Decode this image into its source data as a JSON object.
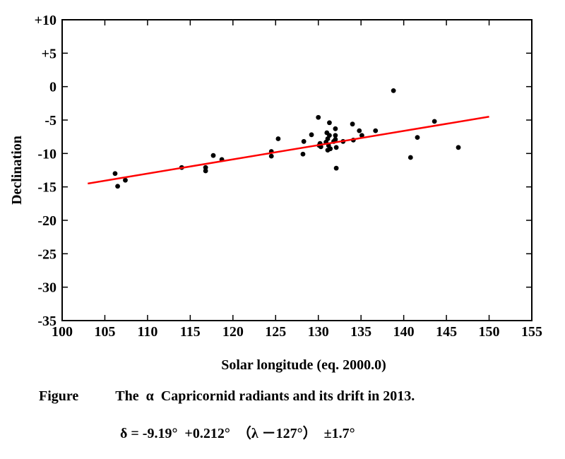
{
  "chart_data": {
    "type": "scatter",
    "title": "",
    "xlabel": "Solar longitude (eq. 2000.0)",
    "ylabel": "Declination",
    "xlim": [
      100,
      155
    ],
    "ylim": [
      -35,
      10
    ],
    "x_ticks": [
      100,
      105,
      110,
      115,
      120,
      125,
      130,
      135,
      140,
      145,
      150,
      155
    ],
    "x_tick_labels": [
      "100",
      "105",
      "110",
      "115",
      "120",
      "125",
      "130",
      "135",
      "140",
      "145",
      "150",
      "155"
    ],
    "y_ticks": [
      10,
      5,
      0,
      -5,
      -10,
      -15,
      -20,
      -25,
      -30,
      -35
    ],
    "y_tick_labels": [
      "+10",
      "+5",
      "0",
      "-5",
      "-10",
      "-15",
      "-20",
      "-25",
      "-30",
      "-35"
    ],
    "grid": false,
    "series": [
      {
        "name": "radiants",
        "kind": "scatter",
        "color": "#000000",
        "points": [
          [
            106.2,
            -13.0
          ],
          [
            106.5,
            -14.9
          ],
          [
            107.4,
            -14.0
          ],
          [
            114.0,
            -12.1
          ],
          [
            116.8,
            -12.1
          ],
          [
            116.8,
            -12.6
          ],
          [
            117.7,
            -10.3
          ],
          [
            118.7,
            -10.9
          ],
          [
            124.5,
            -9.7
          ],
          [
            124.5,
            -10.4
          ],
          [
            125.3,
            -7.8
          ],
          [
            128.2,
            -10.1
          ],
          [
            128.3,
            -8.2
          ],
          [
            129.2,
            -7.2
          ],
          [
            130.0,
            -4.6
          ],
          [
            130.1,
            -8.8
          ],
          [
            130.2,
            -8.5
          ],
          [
            130.3,
            -9.0
          ],
          [
            130.9,
            -8.3
          ],
          [
            131.0,
            -6.9
          ],
          [
            131.1,
            -7.8
          ],
          [
            131.1,
            -9.5
          ],
          [
            131.2,
            -8.8
          ],
          [
            131.3,
            -5.4
          ],
          [
            131.3,
            -7.3
          ],
          [
            131.4,
            -9.3
          ],
          [
            131.8,
            -8.2
          ],
          [
            132.0,
            -6.3
          ],
          [
            132.0,
            -7.3
          ],
          [
            132.0,
            -7.9
          ],
          [
            132.1,
            -9.1
          ],
          [
            132.1,
            -12.2
          ],
          [
            132.9,
            -8.2
          ],
          [
            134.0,
            -5.6
          ],
          [
            134.1,
            -8.0
          ],
          [
            134.8,
            -6.6
          ],
          [
            135.1,
            -7.3
          ],
          [
            136.7,
            -6.6
          ],
          [
            138.8,
            -0.6
          ],
          [
            140.8,
            -10.6
          ],
          [
            141.6,
            -7.6
          ],
          [
            143.6,
            -5.2
          ],
          [
            146.4,
            -9.1
          ]
        ]
      },
      {
        "name": "drift",
        "kind": "line",
        "color": "#ff0000",
        "x": [
          103,
          150
        ],
        "y": [
          -14.5,
          -4.5
        ]
      }
    ]
  },
  "caption": {
    "label": "Figure",
    "text": "The  α  Capricornid radiants and its drift in 2013.",
    "formula": "δ = -9.19°  +0.212°  （λ －127°）  ±1.7°"
  }
}
